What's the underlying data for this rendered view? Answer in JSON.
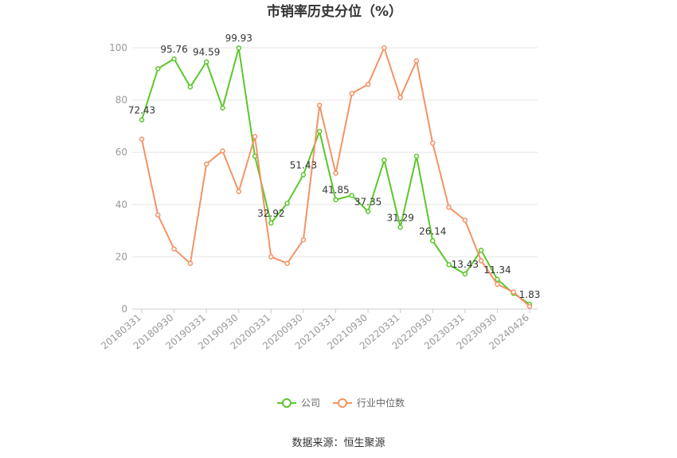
{
  "chart_data": {
    "type": "line",
    "title": "市销率历史分位（%）",
    "source": "数据来源：恒生聚源",
    "ylim": [
      0,
      100
    ],
    "yticks": [
      0,
      20,
      40,
      60,
      80,
      100
    ],
    "grid": true,
    "legend_position": "bottom",
    "x": [
      "20180331",
      "20180630",
      "20180930",
      "20181231",
      "20190331",
      "20190630",
      "20190930",
      "20191231",
      "20200331",
      "20200630",
      "20200930",
      "20201231",
      "20210331",
      "20210630",
      "20210930",
      "20211231",
      "20220331",
      "20220630",
      "20220930",
      "20221231",
      "20230331",
      "20230630",
      "20230930",
      "20231231",
      "20240426"
    ],
    "xtick_labels": [
      "20180331",
      "20180930",
      "20190331",
      "20190930",
      "20200331",
      "20200930",
      "20210331",
      "20210930",
      "20220331",
      "20220930",
      "20230331",
      "20230930",
      "20240426"
    ],
    "series": [
      {
        "name": "公司",
        "color": "#5cc72b",
        "values": [
          72.43,
          92,
          95.76,
          85,
          94.59,
          77,
          99.93,
          58.5,
          32.92,
          40.5,
          51.43,
          68,
          41.85,
          43.5,
          37.35,
          57,
          31.29,
          58.5,
          26.14,
          17,
          13.43,
          22.5,
          11.34,
          6,
          1.83
        ]
      },
      {
        "name": "行业中位数",
        "color": "#f39366",
        "values": [
          65,
          36,
          23,
          17.5,
          55.5,
          60.5,
          45,
          66,
          20,
          17.5,
          26.5,
          78,
          52,
          82.5,
          86,
          100,
          81,
          95,
          63.5,
          39,
          34,
          18.5,
          9.5,
          6.5,
          1
        ]
      }
    ],
    "data_labels": [
      {
        "series": 0,
        "index": 0,
        "text": "72.43"
      },
      {
        "series": 0,
        "index": 2,
        "text": "95.76"
      },
      {
        "series": 0,
        "index": 4,
        "text": "94.59"
      },
      {
        "series": 0,
        "index": 6,
        "text": "99.93"
      },
      {
        "series": 0,
        "index": 8,
        "text": "32.92"
      },
      {
        "series": 0,
        "index": 10,
        "text": "51.43"
      },
      {
        "series": 0,
        "index": 12,
        "text": "41.85"
      },
      {
        "series": 0,
        "index": 14,
        "text": "37.35"
      },
      {
        "series": 0,
        "index": 16,
        "text": "31.29"
      },
      {
        "series": 0,
        "index": 18,
        "text": "26.14"
      },
      {
        "series": 0,
        "index": 20,
        "text": "13.43"
      },
      {
        "series": 0,
        "index": 22,
        "text": "11.34"
      },
      {
        "series": 0,
        "index": 24,
        "text": "1.83"
      }
    ]
  }
}
